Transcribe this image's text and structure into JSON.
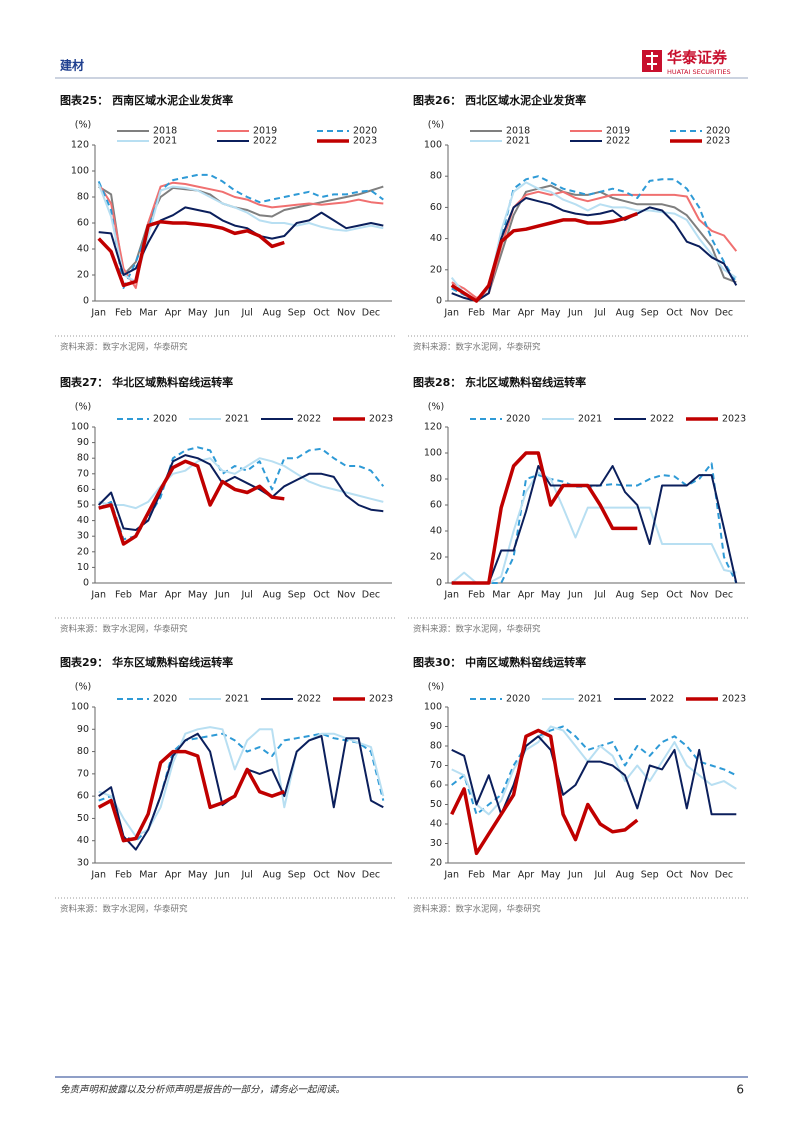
{
  "header": {
    "section": "建材",
    "logo_cn": "华泰证券",
    "logo_en": "HUATAI SECURITIES"
  },
  "chart_data": [
    {
      "type": "line",
      "title": "图表25： 西南区域水泥企业发货率",
      "unit": "(%)",
      "source": "资料来源：数字水泥网，华泰研究",
      "categories": [
        "Jan",
        null,
        "Feb",
        null,
        "Mar",
        null,
        "Apr",
        null,
        "May",
        null,
        "Jun",
        null,
        "Jul",
        null,
        "Aug",
        null,
        "Sep",
        null,
        "Oct",
        null,
        "Nov",
        null,
        "Dec",
        null
      ],
      "ylim": [
        0,
        120
      ],
      "yticks": [
        0,
        20,
        40,
        60,
        80,
        100,
        120
      ],
      "legend_columns": 3,
      "series": [
        {
          "name": "2018",
          "color": "#7f7f7f",
          "width": 2,
          "values": [
            88,
            82,
            20,
            30,
            60,
            80,
            87,
            86,
            85,
            82,
            75,
            72,
            70,
            66,
            65,
            70,
            72,
            74,
            76,
            78,
            80,
            82,
            85,
            88
          ]
        },
        {
          "name": "2019",
          "color": "#f07070",
          "width": 2,
          "values": [
            90,
            75,
            25,
            10,
            60,
            88,
            91,
            90,
            88,
            86,
            84,
            80,
            78,
            74,
            72,
            73,
            74,
            75,
            74,
            75,
            76,
            78,
            76,
            75
          ]
        },
        {
          "name": "2020",
          "color": "#2e9ad6",
          "width": 2,
          "dash": true,
          "values": [
            92,
            70,
            10,
            30,
            55,
            85,
            93,
            95,
            97,
            97,
            92,
            85,
            80,
            76,
            78,
            80,
            82,
            84,
            80,
            82,
            82,
            84,
            85,
            78
          ]
        },
        {
          "name": "2021",
          "color": "#b8dff2",
          "width": 2,
          "values": [
            90,
            65,
            20,
            15,
            50,
            85,
            88,
            87,
            85,
            80,
            75,
            72,
            68,
            62,
            60,
            60,
            58,
            60,
            57,
            55,
            54,
            56,
            58,
            56
          ]
        },
        {
          "name": "2022",
          "color": "#0b1f5c",
          "width": 2,
          "values": [
            53,
            52,
            20,
            25,
            45,
            62,
            66,
            72,
            70,
            68,
            62,
            58,
            56,
            50,
            48,
            50,
            60,
            62,
            68,
            62,
            56,
            58,
            60,
            58
          ]
        },
        {
          "name": "2023",
          "color": "#c00000",
          "width": 3.5,
          "values": [
            48,
            38,
            12,
            15,
            58,
            61,
            60,
            60,
            59,
            58,
            56,
            52,
            54,
            50,
            42,
            45,
            null,
            null,
            null,
            null,
            null,
            null,
            null,
            null
          ]
        }
      ]
    },
    {
      "type": "line",
      "title": "图表26： 西北区域水泥企业发货率",
      "unit": "(%)",
      "source": "资料来源：数字水泥网，华泰研究",
      "categories": [
        "Jan",
        null,
        "Feb",
        null,
        "Mar",
        null,
        "Apr",
        null,
        "May",
        null,
        "Jun",
        null,
        "Jul",
        null,
        "Aug",
        null,
        "Sep",
        null,
        "Oct",
        null,
        "Nov",
        null,
        "Dec",
        null
      ],
      "ylim": [
        0,
        100
      ],
      "yticks": [
        0,
        20,
        40,
        60,
        80,
        100
      ],
      "legend_columns": 3,
      "series": [
        {
          "name": "2018",
          "color": "#7f7f7f",
          "width": 2,
          "values": [
            10,
            5,
            0,
            5,
            30,
            55,
            70,
            72,
            74,
            70,
            68,
            68,
            70,
            66,
            64,
            62,
            62,
            62,
            60,
            55,
            45,
            35,
            15,
            12
          ]
        },
        {
          "name": "2019",
          "color": "#f07070",
          "width": 2,
          "values": [
            12,
            8,
            2,
            5,
            35,
            60,
            68,
            70,
            68,
            70,
            66,
            64,
            66,
            68,
            68,
            68,
            68,
            68,
            68,
            67,
            52,
            45,
            42,
            32
          ]
        },
        {
          "name": "2020",
          "color": "#2e9ad6",
          "width": 2,
          "dash": true,
          "values": [
            8,
            4,
            0,
            10,
            40,
            72,
            78,
            80,
            76,
            72,
            70,
            68,
            70,
            72,
            70,
            66,
            77,
            78,
            78,
            72,
            60,
            40,
            25,
            12
          ]
        },
        {
          "name": "2021",
          "color": "#b8dff2",
          "width": 2,
          "values": [
            15,
            5,
            0,
            8,
            45,
            70,
            76,
            72,
            70,
            65,
            62,
            58,
            62,
            60,
            60,
            58,
            58,
            57,
            56,
            52,
            40,
            30,
            20,
            15
          ]
        },
        {
          "name": "2022",
          "color": "#0b1f5c",
          "width": 2,
          "values": [
            5,
            2,
            0,
            5,
            40,
            60,
            66,
            64,
            62,
            58,
            56,
            55,
            56,
            58,
            52,
            56,
            60,
            58,
            50,
            38,
            35,
            28,
            24,
            10
          ]
        },
        {
          "name": "2023",
          "color": "#c00000",
          "width": 3.5,
          "values": [
            10,
            5,
            0,
            10,
            38,
            45,
            46,
            48,
            50,
            52,
            52,
            50,
            50,
            51,
            53,
            56,
            null,
            null,
            null,
            null,
            null,
            null,
            null,
            null
          ]
        }
      ]
    },
    {
      "type": "line",
      "title": "图表27： 华北区域熟料窑线运转率",
      "unit": "(%)",
      "source": "资料来源：数字水泥网，华泰研究",
      "categories": [
        "Jan",
        null,
        "Feb",
        null,
        "Mar",
        null,
        "Apr",
        null,
        "May",
        null,
        "Jun",
        null,
        "Jul",
        null,
        "Aug",
        null,
        "Sep",
        null,
        "Oct",
        null,
        "Nov",
        null,
        "Dec",
        null
      ],
      "ylim": [
        0,
        100
      ],
      "yticks": [
        0,
        10,
        20,
        30,
        40,
        50,
        60,
        70,
        80,
        90,
        100
      ],
      "legend_columns": 4,
      "series": [
        {
          "name": "2020",
          "color": "#2e9ad6",
          "width": 2,
          "dash": true,
          "values": [
            48,
            52,
            28,
            30,
            42,
            55,
            80,
            85,
            87,
            85,
            70,
            75,
            72,
            78,
            60,
            80,
            80,
            85,
            86,
            80,
            75,
            75,
            72,
            62
          ]
        },
        {
          "name": "2021",
          "color": "#b8dff2",
          "width": 2,
          "values": [
            52,
            50,
            50,
            48,
            52,
            62,
            70,
            72,
            78,
            80,
            72,
            70,
            75,
            80,
            78,
            75,
            70,
            65,
            62,
            60,
            58,
            56,
            54,
            52
          ]
        },
        {
          "name": "2022",
          "color": "#0b1f5c",
          "width": 2,
          "values": [
            50,
            58,
            35,
            34,
            40,
            58,
            78,
            82,
            80,
            76,
            64,
            68,
            64,
            60,
            55,
            62,
            66,
            70,
            70,
            68,
            56,
            50,
            47,
            46
          ]
        },
        {
          "name": "2023",
          "color": "#c00000",
          "width": 3.5,
          "values": [
            48,
            50,
            25,
            30,
            45,
            60,
            74,
            78,
            75,
            50,
            65,
            60,
            58,
            62,
            55,
            54,
            null,
            null,
            null,
            null,
            null,
            null,
            null,
            null
          ]
        }
      ]
    },
    {
      "type": "line",
      "title": "图表28： 东北区域熟料窑线运转率",
      "unit": "(%)",
      "source": "资料来源：数字水泥网，华泰研究",
      "categories": [
        "Jan",
        null,
        "Feb",
        null,
        "Mar",
        null,
        "Apr",
        null,
        "May",
        null,
        "Jun",
        null,
        "Jul",
        null,
        "Aug",
        null,
        "Sep",
        null,
        "Oct",
        null,
        "Nov",
        null,
        "Dec",
        null
      ],
      "ylim": [
        0,
        120
      ],
      "yticks": [
        0,
        20,
        40,
        60,
        80,
        100,
        120
      ],
      "legend_columns": 4,
      "series": [
        {
          "name": "2020",
          "color": "#2e9ad6",
          "width": 2,
          "dash": true,
          "values": [
            0,
            0,
            0,
            0,
            0,
            20,
            80,
            83,
            80,
            78,
            74,
            74,
            75,
            76,
            75,
            75,
            80,
            83,
            82,
            75,
            80,
            92,
            20,
            0
          ]
        },
        {
          "name": "2021",
          "color": "#b8dff2",
          "width": 2,
          "values": [
            0,
            8,
            0,
            0,
            5,
            40,
            70,
            85,
            80,
            58,
            35,
            58,
            58,
            58,
            58,
            58,
            58,
            30,
            30,
            30,
            30,
            30,
            10,
            8
          ]
        },
        {
          "name": "2022",
          "color": "#0b1f5c",
          "width": 2,
          "values": [
            0,
            0,
            0,
            0,
            25,
            25,
            55,
            90,
            75,
            75,
            75,
            75,
            75,
            90,
            70,
            60,
            30,
            75,
            75,
            75,
            83,
            83,
            42,
            0
          ]
        },
        {
          "name": "2023",
          "color": "#c00000",
          "width": 3.5,
          "values": [
            0,
            0,
            0,
            0,
            58,
            90,
            100,
            100,
            60,
            75,
            75,
            75,
            60,
            42,
            42,
            42,
            null,
            null,
            null,
            null,
            null,
            null,
            null,
            null
          ]
        }
      ]
    },
    {
      "type": "line",
      "title": "图表29： 华东区域熟料窑线运转率",
      "unit": "(%)",
      "source": "资料来源：数字水泥网，华泰研究",
      "categories": [
        "Jan",
        null,
        "Feb",
        null,
        "Mar",
        null,
        "Apr",
        null,
        "May",
        null,
        "Jun",
        null,
        "Jul",
        null,
        "Aug",
        null,
        "Sep",
        null,
        "Oct",
        null,
        "Nov",
        null,
        "Dec",
        null
      ],
      "ylim": [
        30,
        100
      ],
      "yticks": [
        30,
        40,
        50,
        60,
        70,
        80,
        90,
        100
      ],
      "legend_columns": 4,
      "series": [
        {
          "name": "2020",
          "color": "#2e9ad6",
          "width": 2,
          "dash": true,
          "values": [
            58,
            60,
            42,
            40,
            45,
            60,
            80,
            85,
            86,
            87,
            88,
            85,
            80,
            82,
            78,
            85,
            86,
            87,
            88,
            86,
            85,
            84,
            80,
            58
          ]
        },
        {
          "name": "2021",
          "color": "#b8dff2",
          "width": 2,
          "values": [
            62,
            60,
            50,
            42,
            45,
            55,
            75,
            88,
            90,
            91,
            90,
            72,
            85,
            90,
            90,
            55,
            80,
            85,
            88,
            88,
            86,
            84,
            82,
            60
          ]
        },
        {
          "name": "2022",
          "color": "#0b1f5c",
          "width": 2,
          "values": [
            60,
            64,
            42,
            36,
            45,
            60,
            78,
            85,
            88,
            80,
            56,
            60,
            72,
            70,
            72,
            60,
            80,
            85,
            87,
            55,
            86,
            86,
            58,
            55
          ]
        },
        {
          "name": "2023",
          "color": "#c00000",
          "width": 3.5,
          "values": [
            55,
            58,
            40,
            41,
            52,
            75,
            80,
            80,
            78,
            55,
            57,
            60,
            72,
            62,
            60,
            62,
            null,
            null,
            null,
            null,
            null,
            null,
            null,
            null
          ]
        }
      ]
    },
    {
      "type": "line",
      "title": "图表30： 中南区域熟料窑线运转率",
      "unit": "(%)",
      "source": "资料来源：数字水泥网，华泰研究",
      "categories": [
        "Jan",
        null,
        "Feb",
        null,
        "Mar",
        null,
        "Apr",
        null,
        "May",
        null,
        "Jun",
        null,
        "Jul",
        null,
        "Aug",
        null,
        "Sep",
        null,
        "Oct",
        null,
        "Nov",
        null,
        "Dec",
        null
      ],
      "ylim": [
        20,
        100
      ],
      "yticks": [
        20,
        30,
        40,
        50,
        60,
        70,
        80,
        90,
        100
      ],
      "legend_columns": 4,
      "series": [
        {
          "name": "2020",
          "color": "#2e9ad6",
          "width": 2,
          "dash": true,
          "values": [
            60,
            65,
            45,
            50,
            55,
            70,
            80,
            85,
            88,
            90,
            85,
            78,
            80,
            82,
            70,
            80,
            75,
            82,
            85,
            80,
            72,
            70,
            68,
            65
          ]
        },
        {
          "name": "2021",
          "color": "#b8dff2",
          "width": 2,
          "values": [
            68,
            65,
            50,
            45,
            52,
            68,
            78,
            82,
            90,
            88,
            80,
            72,
            80,
            75,
            62,
            70,
            62,
            72,
            82,
            70,
            65,
            60,
            62,
            58
          ]
        },
        {
          "name": "2022",
          "color": "#0b1f5c",
          "width": 2,
          "values": [
            78,
            75,
            50,
            65,
            45,
            60,
            80,
            85,
            78,
            55,
            60,
            72,
            72,
            70,
            65,
            48,
            70,
            68,
            78,
            48,
            78,
            45,
            45,
            45
          ]
        },
        {
          "name": "2023",
          "color": "#c00000",
          "width": 3.5,
          "values": [
            45,
            58,
            25,
            35,
            45,
            55,
            85,
            88,
            85,
            45,
            32,
            50,
            40,
            36,
            37,
            42,
            null,
            null,
            null,
            null,
            null,
            null,
            null,
            null
          ]
        }
      ]
    }
  ],
  "footer": {
    "disclaimer": "免责声明和披露以及分析师声明是报告的一部分，请务必一起阅读。",
    "page": "6"
  }
}
